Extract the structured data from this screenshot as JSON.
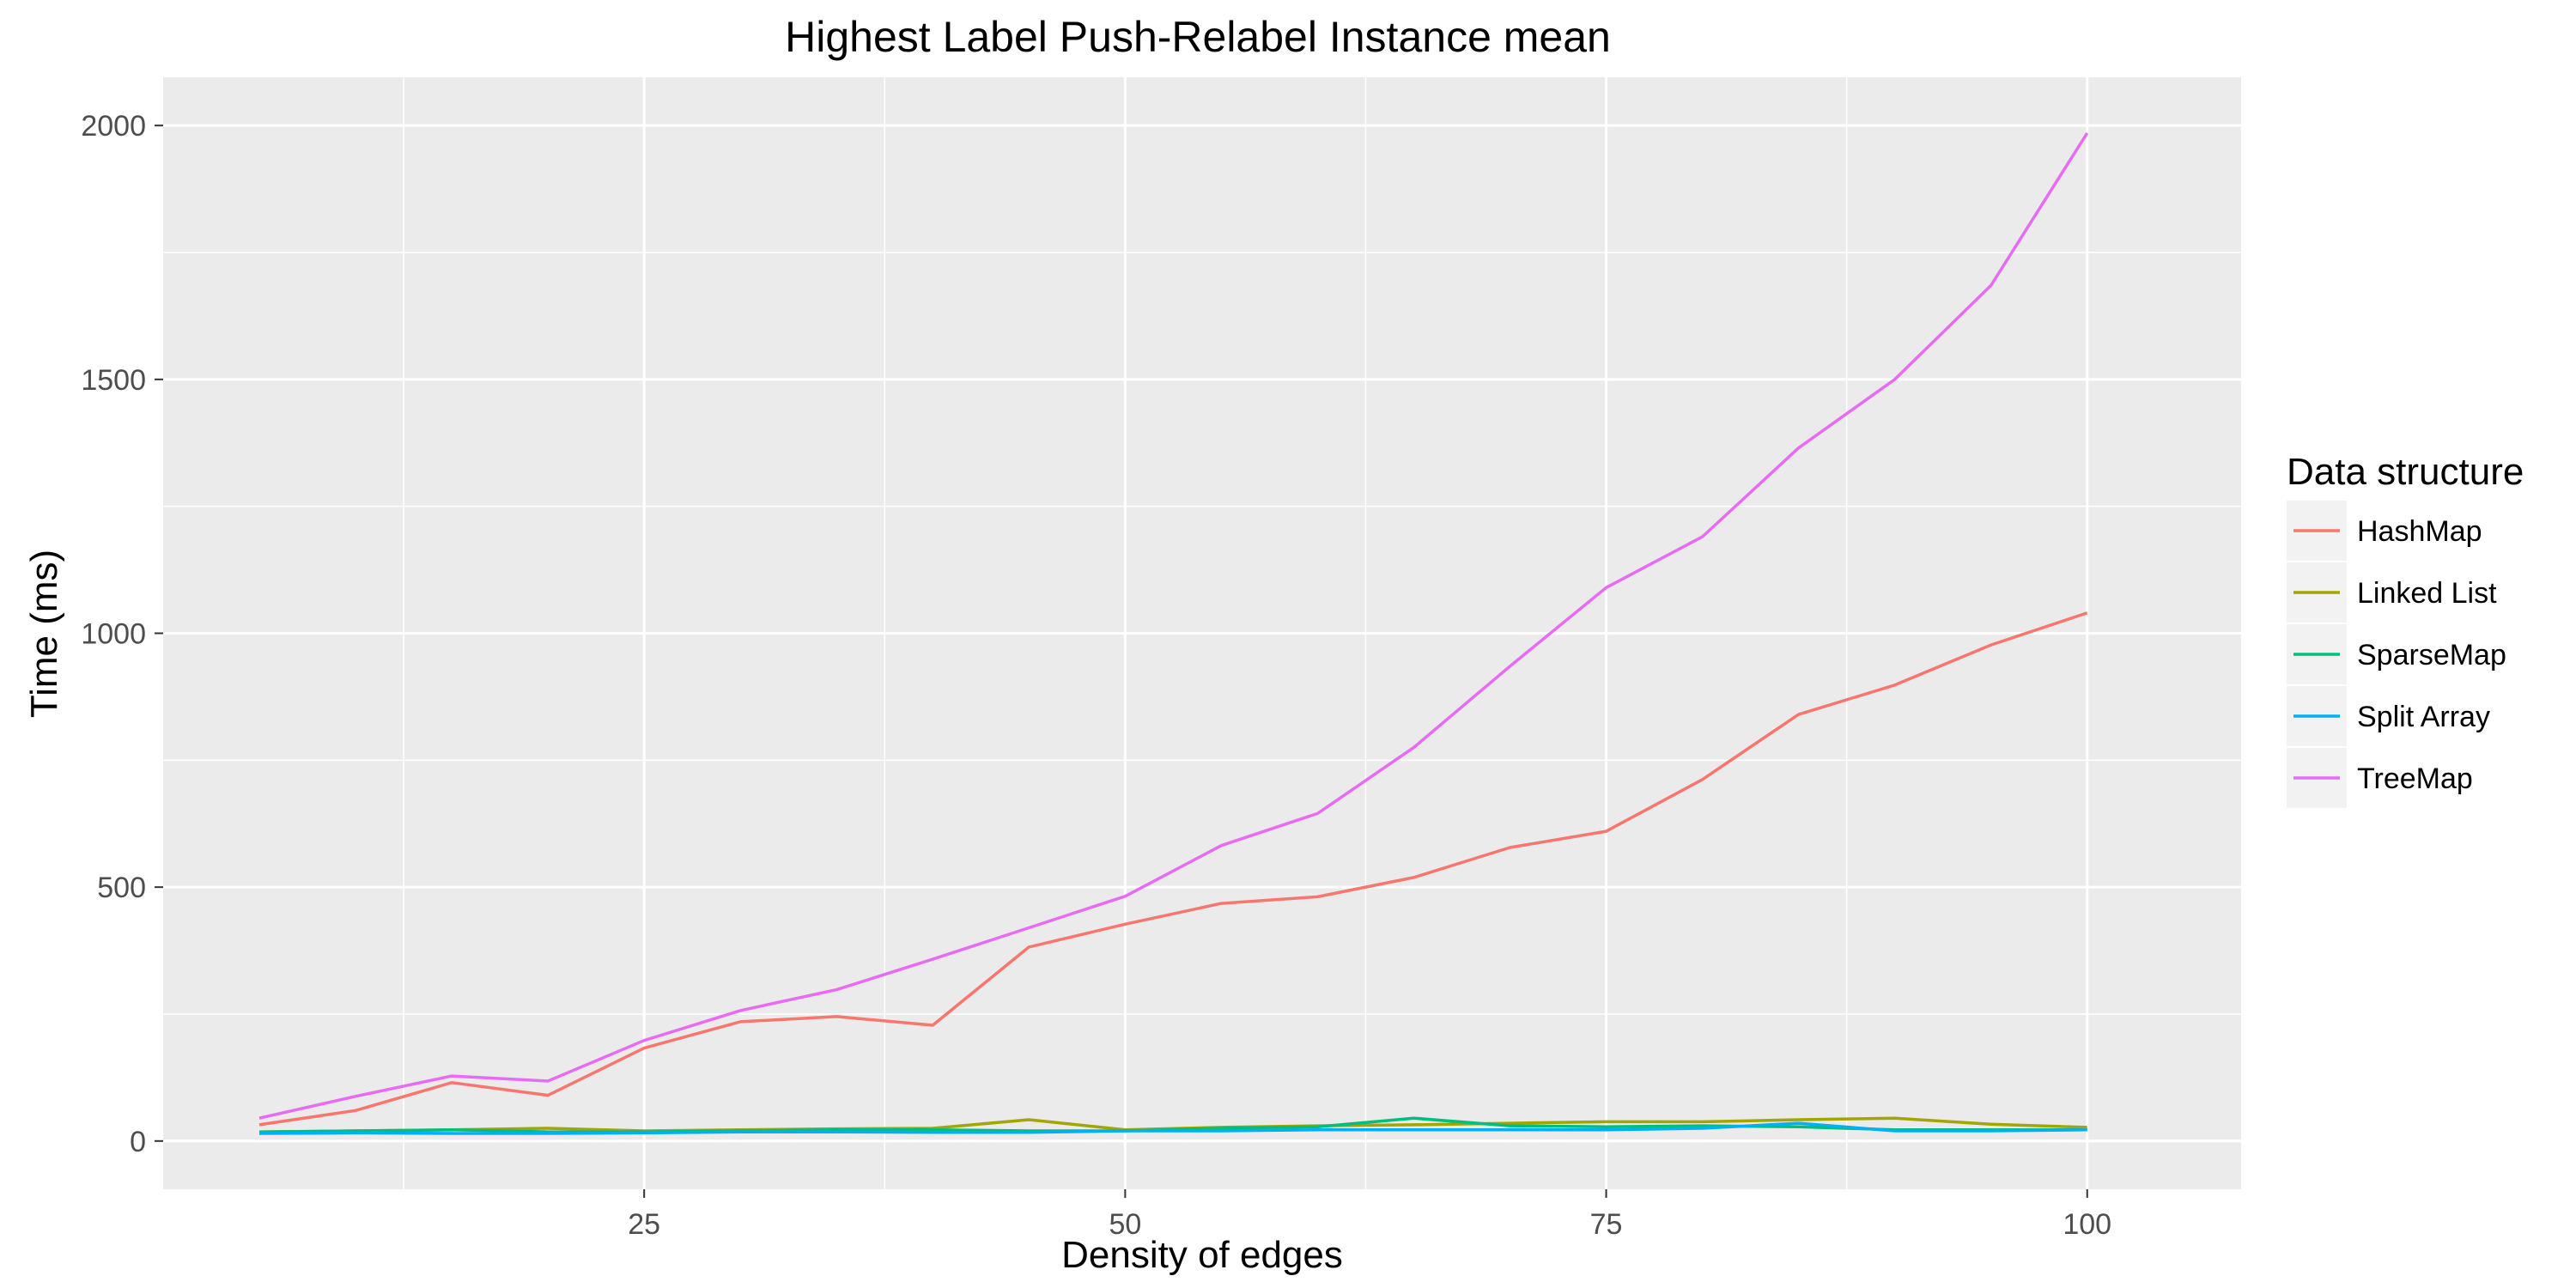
{
  "chart_data": {
    "type": "line",
    "title": "Highest Label Push-Relabel Instance mean",
    "xlabel": "Density of edges",
    "ylabel": "Time (ms)",
    "xlim": [
      0,
      108
    ],
    "ylim": [
      -95,
      2095
    ],
    "x_ticks": [
      25,
      50,
      75,
      100
    ],
    "y_ticks": [
      0,
      500,
      1000,
      1500,
      2000
    ],
    "grid": true,
    "legend": {
      "title": "Data structure",
      "placement": "right"
    },
    "x": [
      5,
      10,
      15,
      20,
      25,
      30,
      35,
      40,
      45,
      50,
      55,
      60,
      65,
      70,
      75,
      80,
      85,
      90,
      95,
      100
    ],
    "series": [
      {
        "name": "HashMap",
        "color": "#F8766D",
        "values": [
          32,
          60,
          115,
          90,
          183,
          235,
          245,
          228,
          382,
          427,
          468,
          481,
          519,
          578,
          610,
          712,
          840,
          898,
          977,
          1040
        ]
      },
      {
        "name": "Linked List",
        "color": "#A3A500",
        "values": [
          18,
          20,
          22,
          25,
          20,
          22,
          24,
          25,
          42,
          22,
          27,
          30,
          32,
          35,
          38,
          38,
          42,
          45,
          33,
          27
        ]
      },
      {
        "name": "SparseMap",
        "color": "#00BF7D",
        "values": [
          18,
          20,
          22,
          18,
          18,
          20,
          22,
          22,
          20,
          20,
          25,
          28,
          45,
          30,
          28,
          30,
          28,
          22,
          22,
          22
        ]
      },
      {
        "name": "Split Array",
        "color": "#00B0F6",
        "values": [
          15,
          16,
          15,
          15,
          16,
          18,
          18,
          17,
          17,
          20,
          20,
          22,
          22,
          22,
          22,
          25,
          35,
          20,
          20,
          22
        ]
      },
      {
        "name": "TreeMap",
        "color": "#E76BF3",
        "values": [
          45,
          88,
          128,
          118,
          198,
          257,
          298,
          358,
          420,
          482,
          582,
          645,
          775,
          935,
          1090,
          1190,
          1365,
          1500,
          1685,
          1985
        ]
      }
    ]
  }
}
